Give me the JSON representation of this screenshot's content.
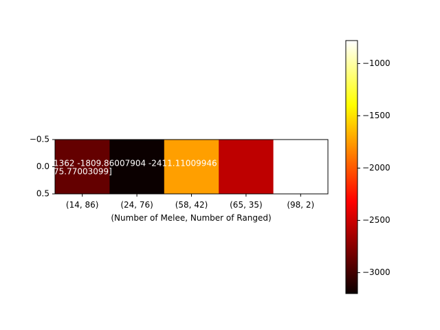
{
  "chart_data": {
    "type": "heatmap",
    "title": "",
    "xlabel": "(Number of Melee, Number of Ranged)",
    "ylabel": "",
    "x_categories": [
      "(14, 86)",
      "(24, 76)",
      "(58, 42)",
      "(65, 35)",
      "(98, 2)"
    ],
    "y_ticks": [
      "−0.5",
      "0.0",
      "0.5"
    ],
    "values": [
      -2890,
      -3200,
      -1740,
      -2580,
      -780
    ],
    "cell_text": {
      "line1": "1362  -1809.86007904 -2411.11009946",
      "line2": "75.77003099]"
    },
    "colormap": "hot",
    "colorbar": {
      "min": -3200,
      "max": -780,
      "ticks": [
        -1000,
        -1500,
        -2000,
        -2500,
        -3000
      ],
      "tick_labels": [
        "−1000",
        "−1500",
        "−2000",
        "−2500",
        "−3000"
      ]
    },
    "grid": false
  }
}
